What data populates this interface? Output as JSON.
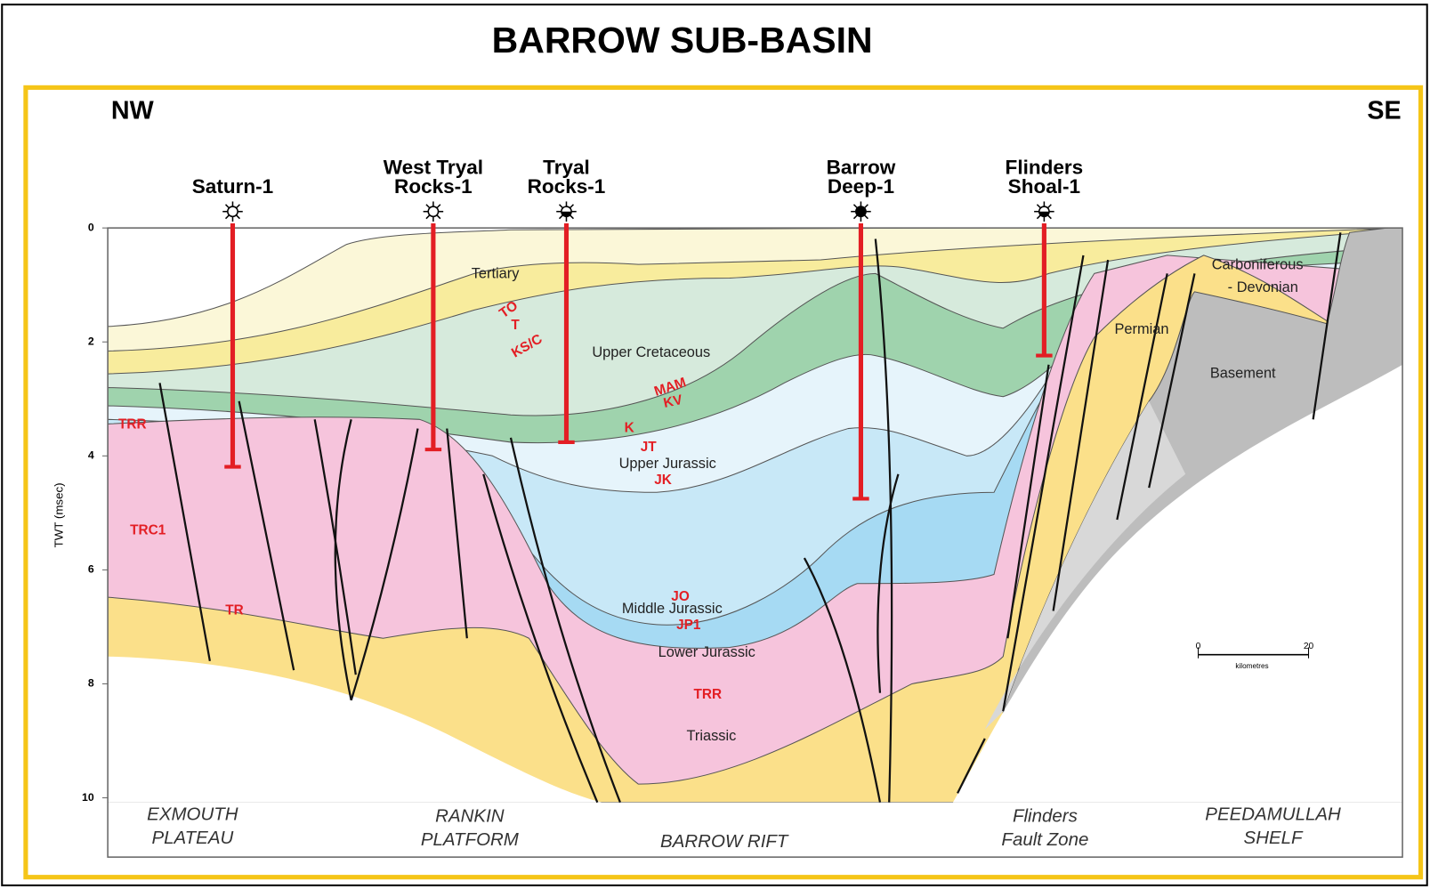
{
  "title": "BARROW SUB-BASIN",
  "directions": {
    "left": "NW",
    "right": "SE"
  },
  "axis": {
    "label": "TWT (msec)",
    "ticks": [
      0,
      2,
      4,
      6,
      8,
      10
    ]
  },
  "wells": [
    {
      "lines": [
        "Saturn-1"
      ]
    },
    {
      "lines": [
        "West Tryal",
        "Rocks-1"
      ]
    },
    {
      "lines": [
        "Tryal",
        "Rocks-1"
      ]
    },
    {
      "lines": [
        "Barrow",
        "Deep-1"
      ]
    },
    {
      "lines": [
        "Flinders",
        "Shoal-1"
      ]
    }
  ],
  "units": [
    {
      "lines": [
        "Tertiary"
      ]
    },
    {
      "lines": [
        "Upper Cretaceous"
      ]
    },
    {
      "lines": [
        "Upper Jurassic"
      ]
    },
    {
      "lines": [
        "Middle Jurassic"
      ]
    },
    {
      "lines": [
        "Lower Jurassic"
      ]
    },
    {
      "lines": [
        "Triassic"
      ]
    },
    {
      "lines": [
        "Permian"
      ]
    },
    {
      "lines": [
        "Carboniferous",
        "- Devonian"
      ]
    },
    {
      "lines": [
        "Basement"
      ]
    }
  ],
  "horizons": [
    "TO",
    "T",
    "KS/C",
    "MAM",
    "KV",
    "K",
    "JT",
    "JK",
    "JO",
    "JP1",
    "TRR",
    "TRR",
    "TRC1",
    "TR"
  ],
  "regions": [
    {
      "lines": [
        "EXMOUTH",
        "PLATEAU"
      ]
    },
    {
      "lines": [
        "RANKIN",
        "PLATFORM"
      ]
    },
    {
      "lines": [
        "BARROW RIFT"
      ]
    },
    {
      "lines": [
        "Flinders",
        "Fault Zone"
      ]
    },
    {
      "lines": [
        "PEEDAMULLAH",
        "SHELF"
      ]
    }
  ],
  "scale_bar": {
    "labels": [
      "0",
      "20"
    ],
    "unit": "kilometres"
  }
}
